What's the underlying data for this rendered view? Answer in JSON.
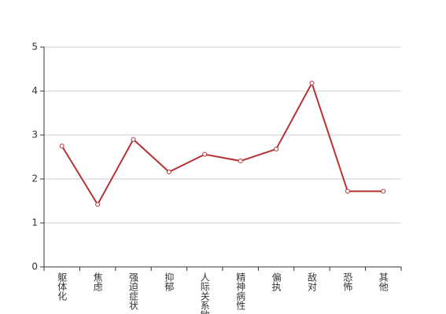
{
  "chart_data": {
    "type": "line",
    "categories": [
      "躯体化",
      "焦虑",
      "强迫症状",
      "抑郁",
      "人际关系敏感",
      "精神病性",
      "偏执",
      "敌对",
      "恐怖",
      "其他"
    ],
    "series": [
      {
        "color": "#b83232",
        "values": [
          2.75,
          1.42,
          2.9,
          2.16,
          2.56,
          2.41,
          2.68,
          4.18,
          1.72,
          1.72
        ]
      }
    ],
    "ylim": [
      0,
      5
    ],
    "yticks": [
      0,
      1,
      2,
      3,
      4,
      5
    ],
    "grid": true
  }
}
